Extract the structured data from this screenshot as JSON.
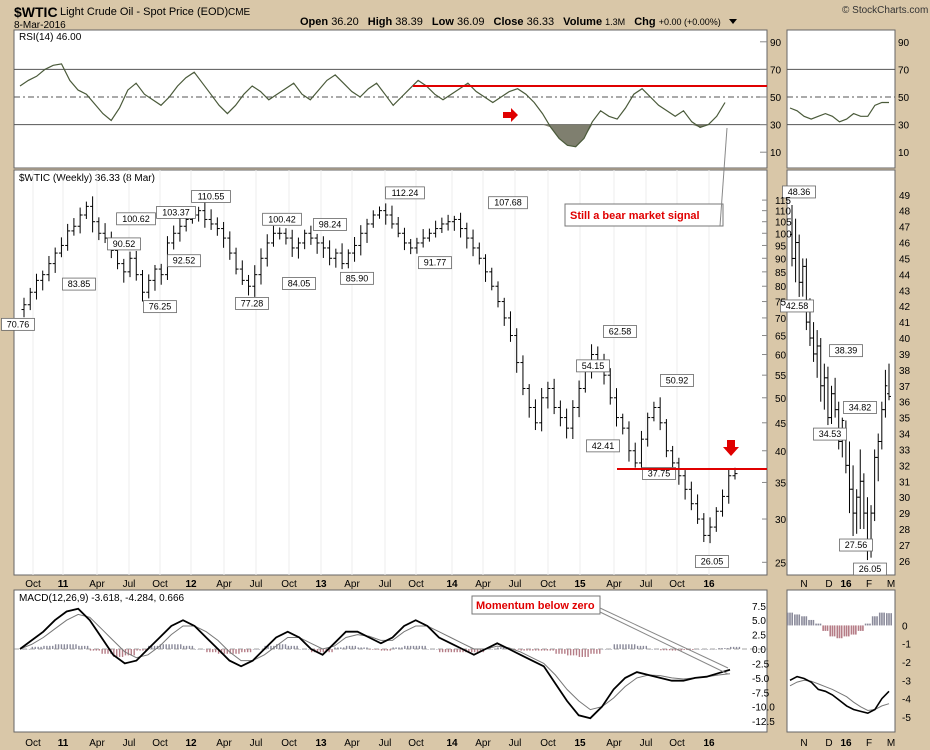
{
  "header": {
    "symbol": "$WTIC",
    "name": "Light Crude Oil - Spot Price (EOD)",
    "exchange": "CME",
    "date": "8-Mar-2016",
    "watermark": "© StockCharts.com",
    "open_label": "Open",
    "open": "36.20",
    "high_label": "High",
    "high": "38.39",
    "low_label": "Low",
    "low": "36.09",
    "close_label": "Close",
    "close": "36.33",
    "volume_label": "Volume",
    "volume": "1.3M",
    "chg_label": "Chg",
    "chg": "+0.00 (+0.00%)"
  },
  "panels": {
    "rsi_label": "RSI(14) 46.00",
    "price_label": "$WTIC (Weekly) 36.33 (8 Mar)",
    "macd_label": "MACD(12,26,9) -3.618, -4.284, 0.666"
  },
  "annotations": {
    "bear": "Still a bear market signal",
    "momentum": "Momentum below zero"
  },
  "colors": {
    "background": "#d9c7a8",
    "panel": "#ffffff",
    "price_bars": "#000000",
    "rsi_line": "#4a5a3a",
    "rsi_fill": "#7f7f6f",
    "macd_line": "#000000",
    "signal_line": "#777777",
    "hist_pos": "#8a8a9a",
    "hist_neg": "#b57c86",
    "annotation": "#e00000"
  },
  "chart_data": [
    {
      "type": "line",
      "title": "RSI(14) 46.00",
      "panel": "main-rsi",
      "ylim": [
        0,
        100
      ],
      "y_ticks": [
        10,
        30,
        50,
        70,
        90
      ],
      "x_ticks": [
        "Oct",
        "11",
        "Apr",
        "Jul",
        "Oct",
        "12",
        "Apr",
        "Jul",
        "Oct",
        "13",
        "Apr",
        "Jul",
        "Oct",
        "14",
        "Apr",
        "Jul",
        "Oct",
        "15",
        "Apr",
        "Jul",
        "Oct",
        "16"
      ],
      "series": [
        {
          "values": [
            58,
            62,
            65,
            70,
            73,
            74,
            62,
            55,
            52,
            45,
            38,
            33,
            42,
            55,
            60,
            52,
            48,
            44,
            50,
            58,
            64,
            68,
            60,
            52,
            44,
            38,
            44,
            52,
            58,
            54,
            48,
            52,
            56,
            60,
            52,
            48,
            55,
            62,
            66,
            60,
            54,
            50,
            56,
            60,
            52,
            44,
            50,
            56,
            62,
            58,
            52,
            48,
            52,
            56,
            60,
            54,
            50,
            46,
            50,
            54,
            56,
            52,
            46,
            38,
            28,
            20,
            15,
            14,
            20,
            32,
            40,
            36,
            34,
            42,
            52,
            56,
            50,
            44,
            40,
            36,
            40,
            32,
            28,
            30,
            36,
            46
          ]
        }
      ],
      "horizontal_lines": [
        30,
        50,
        70
      ]
    },
    {
      "type": "bar",
      "subtype": "ohlc",
      "title": "$WTIC (Weekly) 36.33 (8 Mar)",
      "panel": "main-price",
      "scale": "log",
      "ylim": [
        24,
        120
      ],
      "y_ticks": [
        25,
        30,
        35,
        40,
        45,
        50,
        55,
        60,
        65,
        70,
        75,
        80,
        85,
        90,
        95,
        100,
        105,
        110,
        115
      ],
      "x_ticks": [
        "Oct",
        "11",
        "Apr",
        "Jul",
        "Oct",
        "12",
        "Apr",
        "Jul",
        "Oct",
        "13",
        "Apr",
        "Jul",
        "Oct",
        "14",
        "Apr",
        "Jul",
        "Oct",
        "15",
        "Apr",
        "Jul",
        "Oct",
        "16"
      ],
      "weekly_close": [
        74,
        78,
        82,
        84,
        88,
        92,
        95,
        101,
        103,
        108,
        112,
        105,
        100,
        98,
        93,
        88,
        85,
        90,
        84,
        78,
        82,
        86,
        84,
        96,
        100,
        103,
        106,
        108,
        110,
        106,
        104,
        102,
        98,
        92,
        86,
        82,
        80,
        84,
        90,
        96,
        100,
        100,
        98,
        94,
        96,
        100,
        98,
        96,
        94,
        90,
        92,
        88,
        92,
        95,
        100,
        104,
        108,
        110,
        108,
        104,
        100,
        96,
        94,
        96,
        98,
        100,
        102,
        104,
        105,
        106,
        102,
        98,
        94,
        90,
        85,
        80,
        75,
        70,
        65,
        58,
        52,
        48,
        45,
        50,
        52,
        48,
        46,
        44,
        48,
        52,
        56,
        60,
        58,
        55,
        50,
        46,
        44,
        40,
        38,
        42,
        46,
        48,
        45,
        40,
        38,
        36,
        34,
        32,
        30,
        28,
        29,
        31,
        33,
        36,
        36.33
      ],
      "labels": [
        70.76,
        83.85,
        100.62,
        90.52,
        76.25,
        103.37,
        92.52,
        110.55,
        77.28,
        100.42,
        84.05,
        98.24,
        85.9,
        112.24,
        91.77,
        107.68,
        54.15,
        42.41,
        62.58,
        37.75,
        50.92,
        26.05
      ],
      "horizontal_lines": [
        37.75
      ],
      "annotation": "Still a bear market signal"
    },
    {
      "type": "line",
      "title": "MACD(12,26,9) -3.618, -4.284, 0.666",
      "panel": "main-macd",
      "ylim": [
        -13,
        8.5
      ],
      "y_ticks": [
        7.5,
        5.0,
        2.5,
        0.0,
        -2.5,
        -5.0,
        -7.5,
        -10.0,
        -12.5
      ],
      "x_ticks": [
        "Oct",
        "11",
        "Apr",
        "Jul",
        "Oct",
        "12",
        "Apr",
        "Jul",
        "Oct",
        "13",
        "Apr",
        "Jul",
        "Oct",
        "14",
        "Apr",
        "Jul",
        "Oct",
        "15",
        "Apr",
        "Jul",
        "Oct",
        "16"
      ],
      "series": [
        {
          "values": [
            0,
            1.5,
            3,
            5,
            6.5,
            7,
            5,
            2,
            -1,
            -2.5,
            -2,
            0,
            2,
            4,
            5,
            4,
            2,
            0,
            -2,
            -3,
            -2,
            0,
            2,
            3,
            2,
            0,
            -1,
            1,
            3,
            3,
            2,
            1,
            2,
            4,
            5,
            4,
            2,
            1,
            0,
            -1,
            0,
            1,
            0,
            -1,
            -2,
            -3,
            -6,
            -9,
            -11.5,
            -12,
            -10,
            -7,
            -5,
            -4,
            -4.5,
            -5,
            -5.5,
            -5.5,
            -5,
            -4.8,
            -4.2,
            -3.6
          ]
        },
        {
          "values": [
            0,
            0.8,
            2,
            3.5,
            5,
            6,
            5.5,
            3.5,
            1.5,
            -0.5,
            -1.5,
            -1,
            0.5,
            2.5,
            4,
            4,
            3,
            1.5,
            -0.5,
            -2,
            -2,
            -1,
            0.5,
            2,
            2,
            1,
            0,
            0.5,
            2,
            2.5,
            2.2,
            1.5,
            1.5,
            3,
            4,
            4,
            3,
            2,
            1,
            0,
            0,
            0.5,
            0.2,
            -0.5,
            -1.5,
            -2.5,
            -4.5,
            -7,
            -9,
            -10.5,
            -10,
            -8.5,
            -6.5,
            -5,
            -4.5,
            -4.6,
            -5,
            -5.2,
            -5,
            -4.8,
            -4.5,
            -4.28
          ]
        }
      ],
      "annotation": "Momentum below zero"
    },
    {
      "type": "line",
      "title": "",
      "panel": "side-rsi",
      "ylim": [
        0,
        100
      ],
      "y_ticks": [
        10,
        30,
        50,
        70,
        90
      ],
      "series": [
        {
          "values": [
            42,
            40,
            36,
            34,
            36,
            38,
            36,
            32,
            34,
            38,
            36,
            36,
            44,
            46,
            46
          ]
        }
      ],
      "horizontal_lines": [
        30,
        50,
        70
      ]
    },
    {
      "type": "bar",
      "subtype": "ohlc",
      "title": "",
      "panel": "side-price",
      "ylim": [
        25.3,
        49.3
      ],
      "y_ticks": [
        26,
        27,
        28,
        29,
        30,
        31,
        32,
        33,
        34,
        35,
        36,
        37,
        38,
        39,
        40,
        41,
        42,
        43,
        44,
        45,
        46,
        47,
        48,
        49
      ],
      "x_ticks": [
        "N",
        "D",
        "16",
        "F",
        "M"
      ],
      "labels": [
        48.36,
        42.58,
        38.39,
        34.53,
        34.82,
        27.56,
        26.05
      ],
      "bars": [
        [
          46.5,
          48.36,
          44.5,
          45
        ],
        [
          45,
          47.5,
          43.5,
          46
        ],
        [
          46,
          46.5,
          42.58,
          43.5
        ],
        [
          43.5,
          45,
          42.6,
          44.5
        ],
        [
          44.5,
          45,
          40.5,
          41
        ],
        [
          41,
          42.5,
          39.5,
          40
        ],
        [
          40,
          41,
          38.5,
          39
        ],
        [
          39,
          40.5,
          37.5,
          39.5
        ],
        [
          39.5,
          40,
          36,
          37
        ],
        [
          37,
          38.39,
          35.5,
          37.5
        ],
        [
          37.5,
          38.2,
          34.53,
          35
        ],
        [
          35,
          37,
          34.6,
          36.5
        ],
        [
          36.5,
          37.5,
          35,
          35.5
        ],
        [
          35.5,
          36,
          33,
          33.5
        ],
        [
          33.5,
          35,
          32.5,
          34.82
        ],
        [
          34,
          34.82,
          31.5,
          32
        ],
        [
          32,
          33.5,
          29,
          30.5
        ],
        [
          30.5,
          32,
          27.56,
          29
        ],
        [
          29,
          30.5,
          27.7,
          30
        ],
        [
          30,
          33,
          28,
          31
        ],
        [
          31,
          31.5,
          28,
          29
        ],
        [
          29,
          30,
          26.05,
          27
        ],
        [
          27,
          29.5,
          26.2,
          29
        ],
        [
          29,
          33,
          28.5,
          32.5
        ],
        [
          32.5,
          34,
          31,
          33.5
        ],
        [
          33.5,
          36,
          33,
          35.5
        ],
        [
          35.5,
          38,
          35,
          37
        ],
        [
          36.5,
          38.39,
          36.09,
          36.33
        ]
      ]
    },
    {
      "type": "bar",
      "title": "",
      "panel": "side-macd",
      "ylim": [
        -5.5,
        1.5
      ],
      "y_ticks": [
        0,
        -1,
        -2,
        -3,
        -4,
        -5
      ],
      "x_ticks": [
        "N",
        "D",
        "16",
        "F",
        "M"
      ],
      "series": [
        {
          "values": [
            -3.0,
            -2.8,
            -2.9,
            -3.1,
            -3.5,
            -3.6,
            -3.8,
            -4.1,
            -4.4,
            -4.6,
            -4.7,
            -4.8,
            -4.6,
            -4.0,
            -3.6
          ]
        },
        {
          "values": [
            -3.3,
            -3.1,
            -3.0,
            -3.05,
            -3.2,
            -3.35,
            -3.5,
            -3.7,
            -3.9,
            -4.2,
            -4.45,
            -4.65,
            -4.6,
            -4.4,
            -4.28
          ]
        },
        {
          "values": [
            0.7,
            0.6,
            0.5,
            0.3,
            0.1,
            -0.3,
            -0.6,
            -0.7,
            -0.6,
            -0.5,
            -0.3,
            0.1,
            0.5,
            0.7,
            0.67
          ]
        }
      ]
    }
  ]
}
